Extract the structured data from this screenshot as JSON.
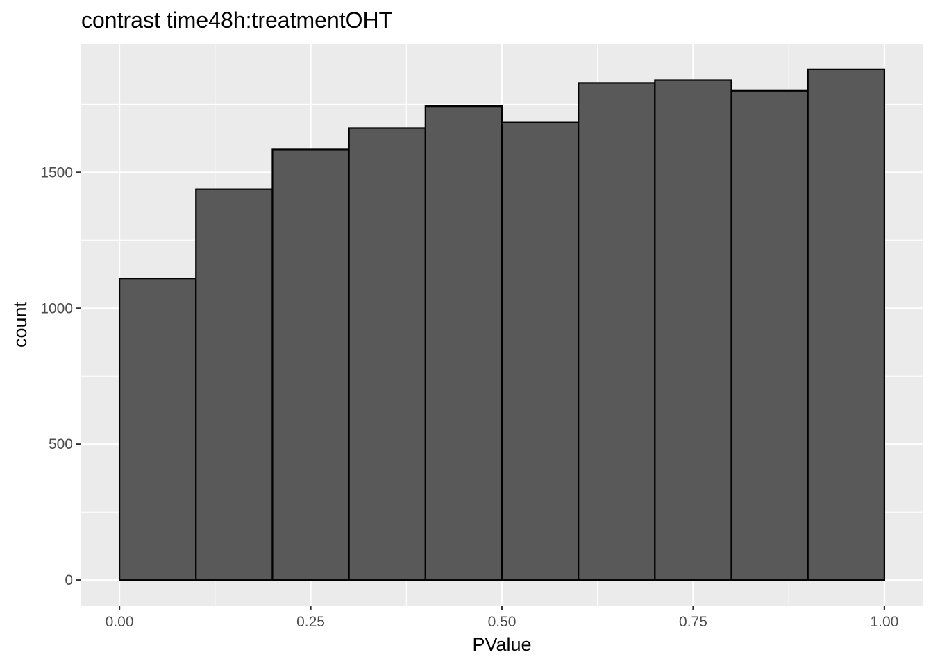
{
  "chart_data": {
    "type": "bar",
    "subtype": "histogram",
    "title": "contrast time48h:treatmentOHT",
    "xlabel": "PValue",
    "ylabel": "count",
    "bins": [
      {
        "x0": 0.0,
        "x1": 0.1,
        "count": 1110
      },
      {
        "x0": 0.1,
        "x1": 0.2,
        "count": 1438
      },
      {
        "x0": 0.2,
        "x1": 0.3,
        "count": 1584
      },
      {
        "x0": 0.3,
        "x1": 0.4,
        "count": 1663
      },
      {
        "x0": 0.4,
        "x1": 0.5,
        "count": 1743
      },
      {
        "x0": 0.5,
        "x1": 0.6,
        "count": 1683
      },
      {
        "x0": 0.6,
        "x1": 0.7,
        "count": 1829
      },
      {
        "x0": 0.7,
        "x1": 0.8,
        "count": 1839
      },
      {
        "x0": 0.8,
        "x1": 0.9,
        "count": 1800
      },
      {
        "x0": 0.9,
        "x1": 1.0,
        "count": 1879
      }
    ],
    "xlim": [
      -0.05,
      1.05
    ],
    "ylim": [
      -94,
      1973
    ],
    "xticks": [
      0.0,
      0.25,
      0.5,
      0.75,
      1.0
    ],
    "xtick_labels": [
      "0.00",
      "0.25",
      "0.50",
      "0.75",
      "1.00"
    ],
    "yticks": [
      0,
      500,
      1000,
      1500
    ],
    "ytick_labels": [
      "0",
      "500",
      "1000",
      "1500"
    ],
    "grid": true,
    "legend": "none",
    "colors": {
      "panel_background": "#ebebeb",
      "grid_major": "#ffffff",
      "bar_fill": "#595959",
      "bar_outline": "#000000",
      "tick_label": "#4d4d4d"
    }
  }
}
